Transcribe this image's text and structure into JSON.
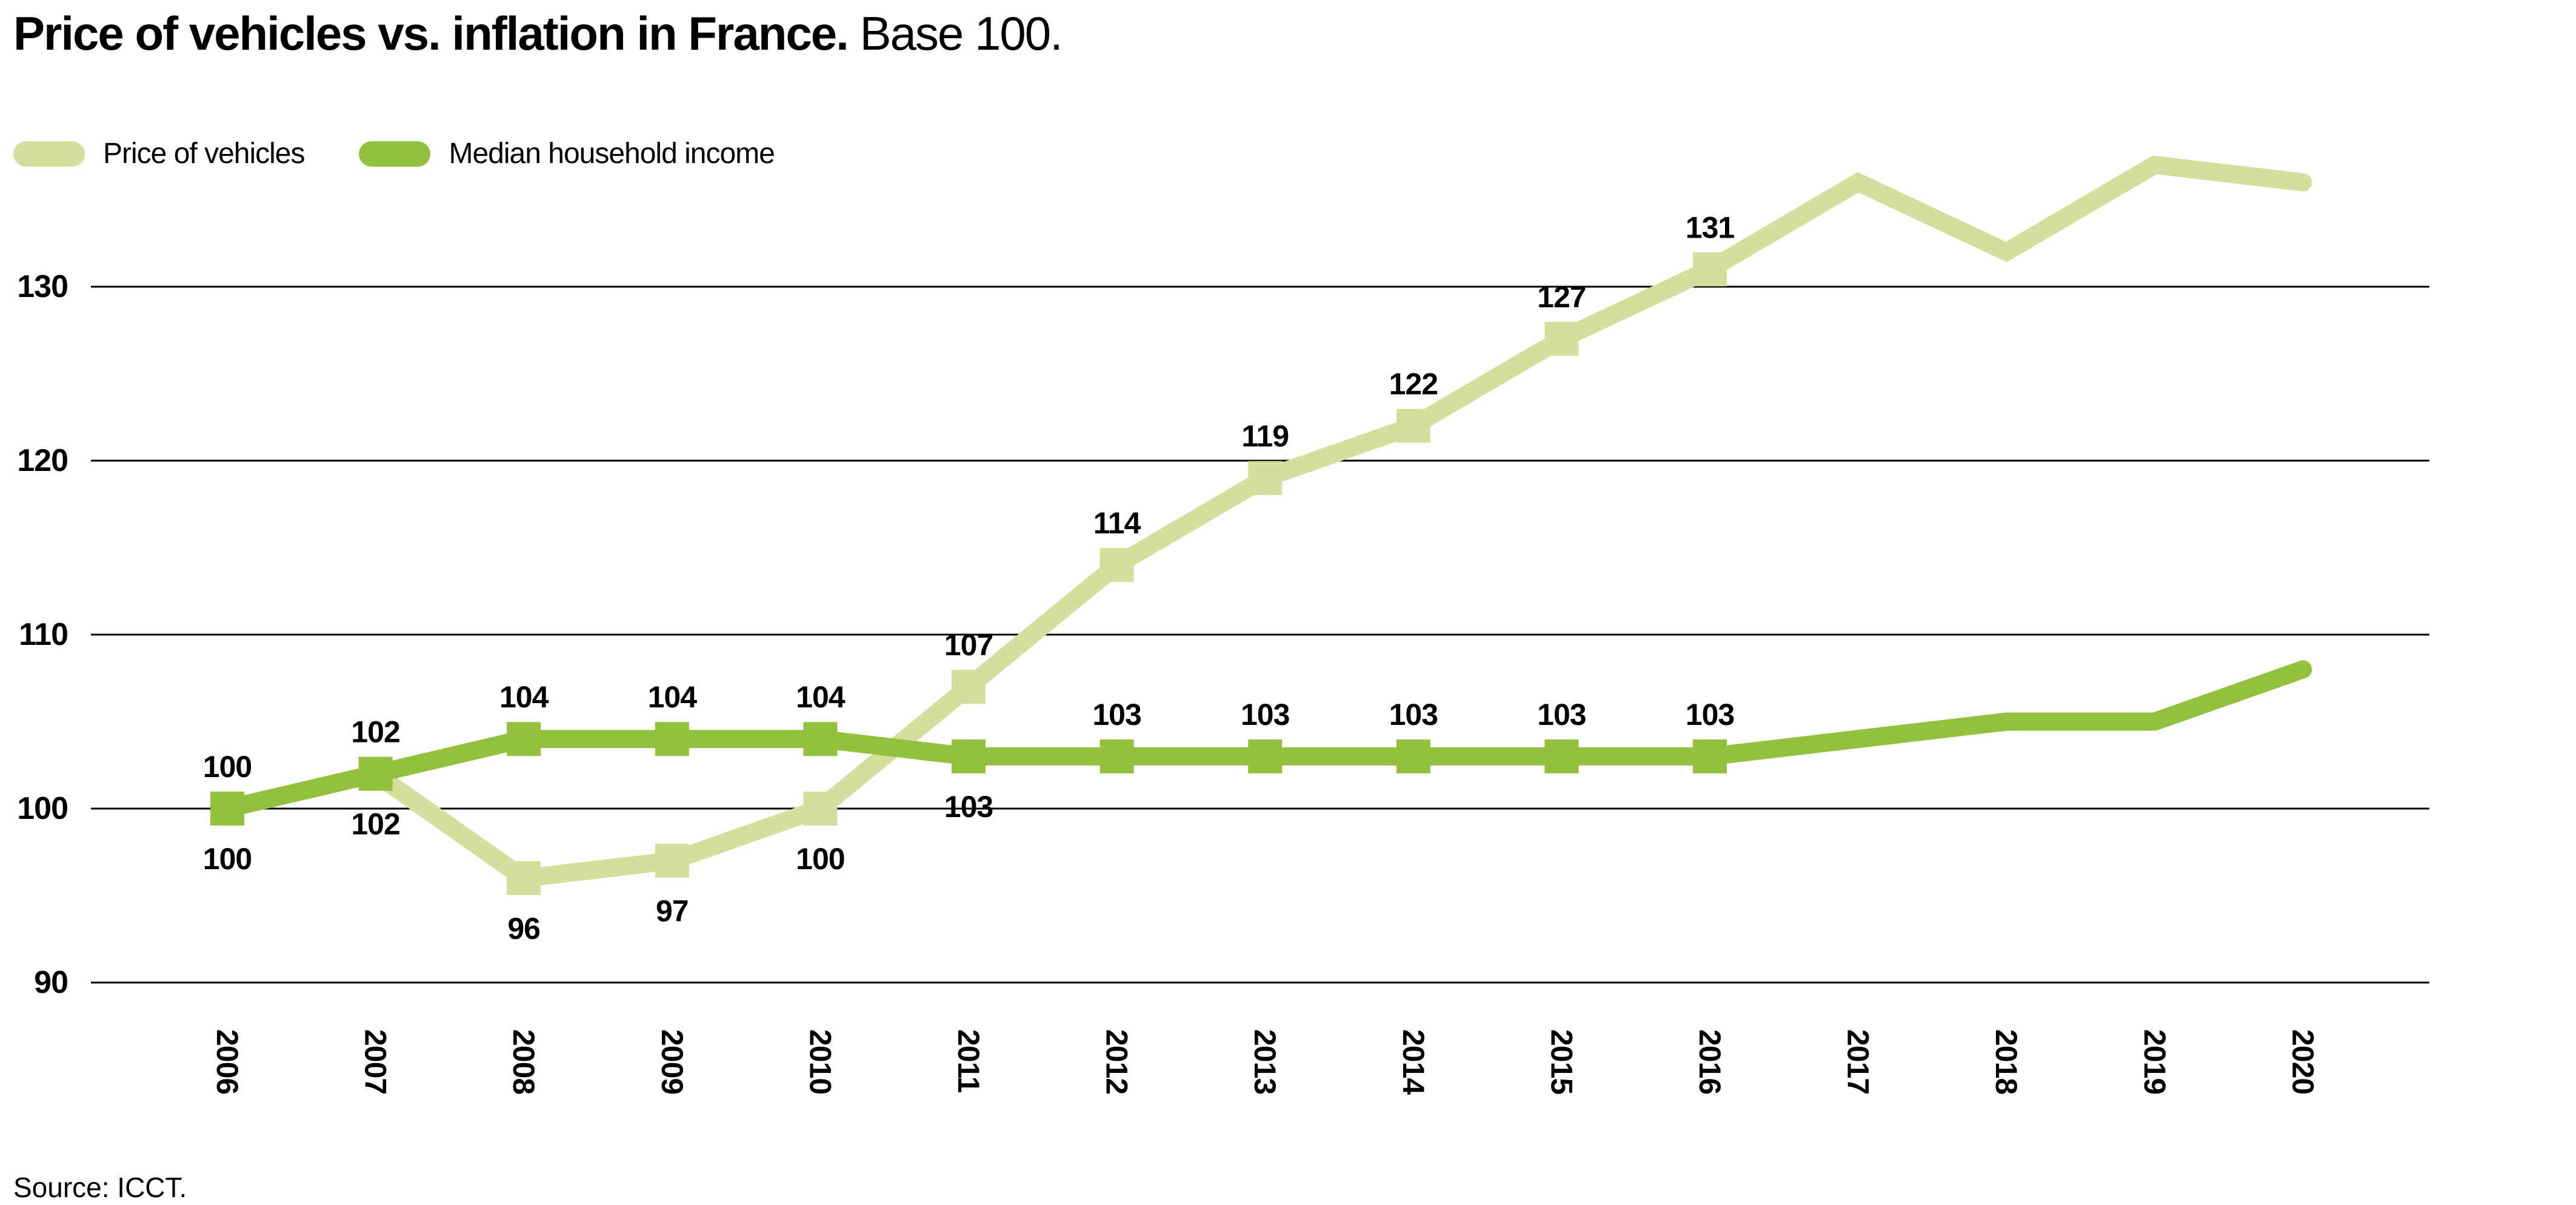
{
  "title": {
    "bold": "Price of vehicles vs. inflation in France.",
    "regular": "Base 100."
  },
  "legend": {
    "items": [
      {
        "label": "Price of vehicles",
        "color": "#d3df9c"
      },
      {
        "label": "Median household income",
        "color": "#94c13d"
      }
    ]
  },
  "source": "Source: ICCT.",
  "chart_data": {
    "type": "line",
    "title": "Price of vehicles vs. inflation in France. Base 100.",
    "x": [
      2006,
      2007,
      2008,
      2009,
      2010,
      2011,
      2012,
      2013,
      2014,
      2015,
      2016,
      2017,
      2018,
      2019,
      2020
    ],
    "y_ticks": [
      130,
      120,
      110,
      100,
      90
    ],
    "ylim": [
      88,
      139
    ],
    "grid": true,
    "legend_position": "top-left",
    "series": [
      {
        "name": "Price of vehicles",
        "color": "#d3df9c",
        "values": [
          100,
          102,
          96,
          97,
          100,
          107,
          114,
          119,
          122,
          127,
          131,
          136,
          132,
          137,
          136
        ],
        "markers_through_index": 10,
        "point_labels": [
          "100",
          "102",
          "96",
          "97",
          "100",
          "107",
          "114",
          "119",
          "122",
          "127",
          "131"
        ],
        "label_sides": [
          "below",
          "below",
          "below",
          "below",
          "below",
          "above",
          "above",
          "above",
          "above",
          "above",
          "above"
        ]
      },
      {
        "name": "Median household income",
        "color": "#94c13d",
        "values": [
          100,
          102,
          104,
          104,
          104,
          103,
          103,
          103,
          103,
          103,
          103,
          104,
          105,
          105,
          108
        ],
        "markers_through_index": 10,
        "point_labels": [
          "100",
          "102",
          "104",
          "104",
          "104",
          "103",
          "103",
          "103",
          "103",
          "103",
          "103"
        ],
        "label_sides": [
          "above",
          "above",
          "above",
          "above",
          "above",
          "below",
          "above",
          "above",
          "above",
          "above",
          "above"
        ]
      }
    ]
  }
}
